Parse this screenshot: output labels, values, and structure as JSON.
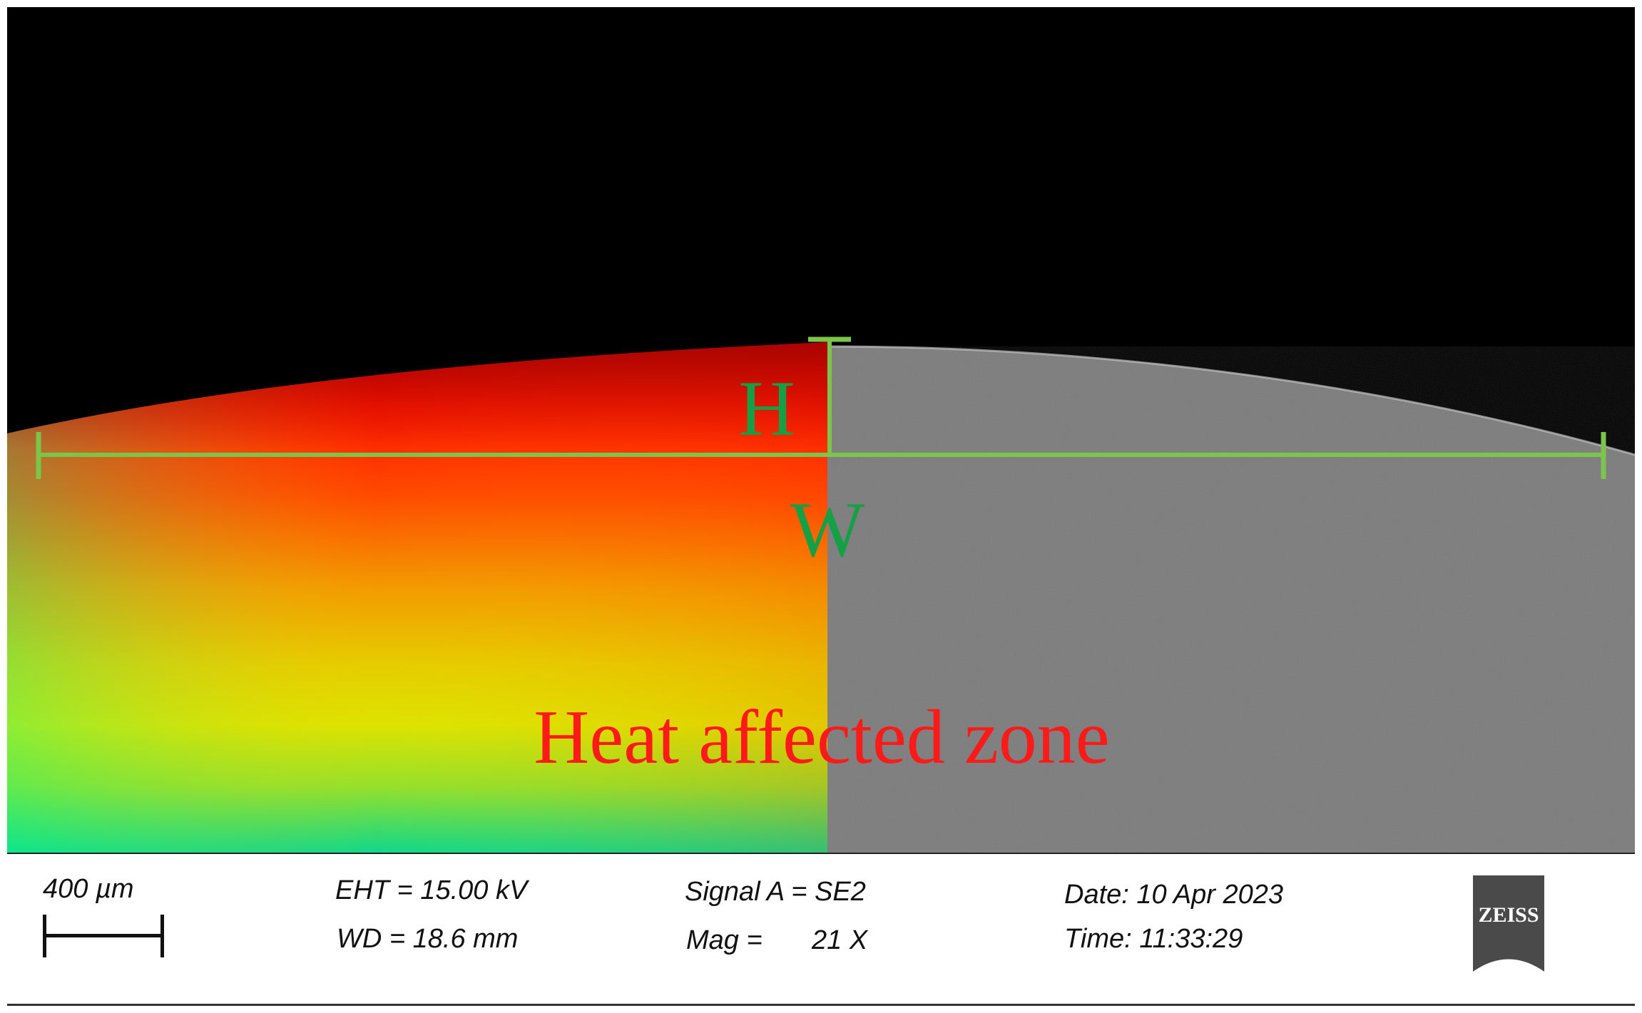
{
  "image": {
    "description_colors": {
      "background": "#000000",
      "sem_surface": "#7a7a7a",
      "measure_lines": "#7cc44a",
      "label_green": "#14a045",
      "zone_label": "#ff1a1a"
    },
    "labels": {
      "height": "H",
      "width": "W",
      "zone": "Heat affected zone"
    }
  },
  "info_bar": {
    "scale_bar_label": "400 µm",
    "eht": "EHT = 15.00 kV",
    "wd": "WD = 18.6 mm",
    "signal": "Signal A = SE2",
    "mag_label": "Mag =",
    "mag_value": "21 X",
    "date": "Date: 10 Apr 2023",
    "time": "Time: 11:33:29",
    "logo_text": "ZEISS"
  }
}
